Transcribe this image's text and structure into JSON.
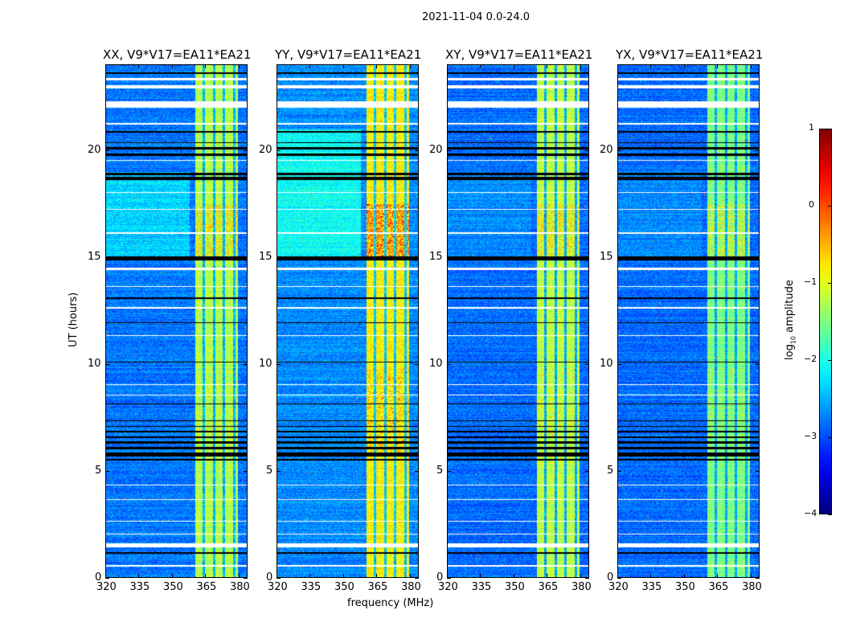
{
  "suptitle": "2021-11-04 0.0-24.0",
  "xlabel": "frequency (MHz)",
  "ylabel": "UT (hours)",
  "colorbar": {
    "label": "log10 amplitude",
    "label_main": "log",
    "label_sub": "10",
    "label_rest": " amplitude",
    "min": -4,
    "max": 1,
    "ticks": [
      -4,
      -3,
      -2,
      -1,
      0,
      1
    ],
    "tick_labels": [
      "−4",
      "−3",
      "−2",
      "−1",
      "0",
      "1"
    ],
    "colormap": "jet"
  },
  "chart_data": [
    {
      "type": "heatmap",
      "title": "XX, V9*V17=EA11*EA21",
      "xlim": [
        320,
        384
      ],
      "ylim": [
        0,
        24
      ],
      "xticks": [
        320,
        335,
        350,
        365,
        380
      ],
      "yticks": [
        0,
        5,
        10,
        15,
        20
      ],
      "background_level": -2.8,
      "mid_level": -2.35,
      "band_level": -1.25,
      "hot_level": -0.6
    },
    {
      "type": "heatmap",
      "title": "YY, V9*V17=EA11*EA21",
      "xlim": [
        320,
        384
      ],
      "ylim": [
        0,
        24
      ],
      "xticks": [
        320,
        335,
        350,
        365,
        380
      ],
      "yticks": [
        0,
        5,
        10,
        15,
        20
      ],
      "background_level": -2.7,
      "mid_level": -2.1,
      "band_level": -0.85,
      "hot_level": 0.1
    },
    {
      "type": "heatmap",
      "title": "XY, V9*V17=EA11*EA21",
      "xlim": [
        320,
        384
      ],
      "ylim": [
        0,
        24
      ],
      "xticks": [
        320,
        335,
        350,
        365,
        380
      ],
      "yticks": [
        0,
        5,
        10,
        15,
        20
      ],
      "background_level": -2.85,
      "mid_level": -2.7,
      "band_level": -1.2,
      "hot_level": -0.6
    },
    {
      "type": "heatmap",
      "title": "YX, V9*V17=EA11*EA21",
      "xlim": [
        320,
        384
      ],
      "ylim": [
        0,
        24
      ],
      "xticks": [
        320,
        335,
        350,
        365,
        380
      ],
      "yticks": [
        0,
        5,
        10,
        15,
        20
      ],
      "background_level": -2.85,
      "mid_level": -2.7,
      "band_level": -1.5,
      "hot_level": -0.8
    }
  ],
  "features": {
    "band_mhz": [
      360.5,
      380
    ],
    "band_gaps_mhz": [
      364.5,
      369.3,
      373.6,
      378.4
    ],
    "enhanced_hours": [
      15,
      19
    ],
    "hot_hours": [
      15,
      17.5
    ],
    "flagged_hours": [
      [
        1.4,
        1.6
      ],
      [
        22.0,
        22.3
      ],
      [
        22.9,
        23.05
      ],
      [
        23.3,
        23.4
      ],
      [
        21.2,
        21.3
      ],
      [
        19.5,
        19.55
      ],
      [
        18.0,
        18.05
      ],
      [
        17.2,
        17.25
      ],
      [
        16.1,
        16.15
      ],
      [
        14.4,
        14.5
      ],
      [
        13.6,
        13.65
      ],
      [
        12.6,
        12.65
      ],
      [
        11.3,
        11.35
      ],
      [
        9.0,
        9.05
      ],
      [
        8.5,
        8.55
      ],
      [
        4.3,
        4.35
      ],
      [
        3.6,
        3.65
      ],
      [
        2.6,
        2.65
      ],
      [
        2.0,
        2.05
      ],
      [
        0.5,
        0.55
      ]
    ],
    "dead_hours": [
      [
        1.1,
        1.15
      ],
      [
        5.45,
        5.55
      ],
      [
        5.65,
        5.85
      ],
      [
        6.0,
        6.1
      ],
      [
        6.25,
        6.35
      ],
      [
        6.5,
        6.6
      ],
      [
        6.8,
        6.85
      ],
      [
        7.05,
        7.1
      ],
      [
        7.3,
        7.35
      ],
      [
        8.1,
        8.15
      ],
      [
        10.05,
        10.1
      ],
      [
        11.9,
        11.95
      ],
      [
        13.05,
        13.1
      ],
      [
        14.85,
        15.05
      ],
      [
        18.6,
        18.75
      ],
      [
        18.85,
        18.95
      ],
      [
        19.75,
        19.85
      ],
      [
        20.05,
        20.15
      ],
      [
        20.35,
        20.4
      ],
      [
        20.85,
        20.9
      ],
      [
        23.6,
        23.65
      ]
    ]
  }
}
